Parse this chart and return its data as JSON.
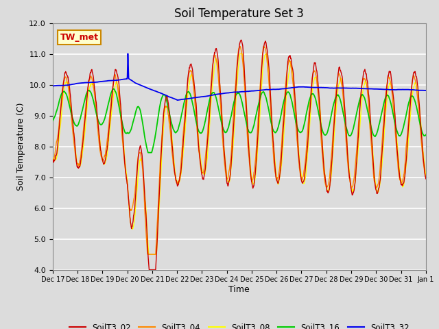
{
  "title": "Soil Temperature Set 3",
  "xlabel": "Time",
  "ylabel": "Soil Temperature (C)",
  "ylim": [
    4.0,
    12.0
  ],
  "yticks": [
    4.0,
    5.0,
    6.0,
    7.0,
    8.0,
    9.0,
    10.0,
    11.0,
    12.0
  ],
  "background_color": "#dcdcdc",
  "plot_bg_color": "#dcdcdc",
  "grid_color": "#ffffff",
  "series_colors": {
    "SoilT3_02": "#cc0000",
    "SoilT3_04": "#ff8800",
    "SoilT3_08": "#ffff00",
    "SoilT3_16": "#00cc00",
    "SoilT3_32": "#0000ee"
  },
  "annotation_label": "TW_met",
  "annotation_bg": "#ffffcc",
  "annotation_border": "#cc8800",
  "xtick_labels": [
    "Dec 17",
    "Dec 18",
    "Dec 19",
    "Dec 20",
    "Dec 21",
    "Dec 22",
    "Dec 23",
    "Dec 24",
    "Dec 25",
    "Dec 26",
    "Dec 27",
    "Dec 28",
    "Dec 29",
    "Dec 30",
    "Dec 31",
    "Jan 1"
  ]
}
